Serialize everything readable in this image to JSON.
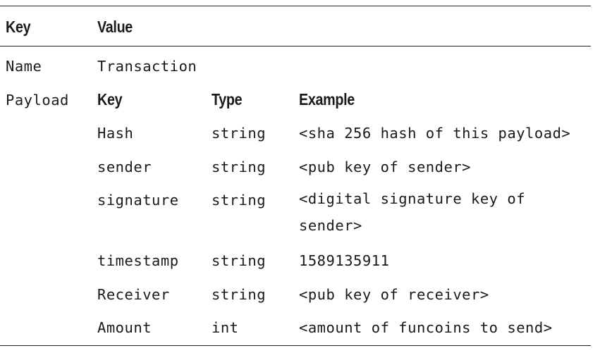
{
  "header": {
    "key": "Key",
    "value": "Value"
  },
  "rows": {
    "name": {
      "key": "Name",
      "value": "Transaction"
    },
    "payload": {
      "key": "Payload"
    }
  },
  "payload_table": {
    "header": {
      "key": "Key",
      "type": "Type",
      "example": "Example"
    },
    "rows": [
      {
        "key": "Hash",
        "type": "string",
        "example": "<sha 256 hash of this payload>"
      },
      {
        "key": "sender",
        "type": "string",
        "example": "<pub key of sender>"
      },
      {
        "key": "signature",
        "type": "string",
        "example": "<digital signature key of sender>"
      },
      {
        "key": "timestamp",
        "type": "string",
        "example": "1589135911"
      },
      {
        "key": "Receiver",
        "type": "string",
        "example": "<pub key of receiver>"
      },
      {
        "key": "Amount",
        "type": "int",
        "example": "<amount of funcoins to send>"
      }
    ]
  }
}
